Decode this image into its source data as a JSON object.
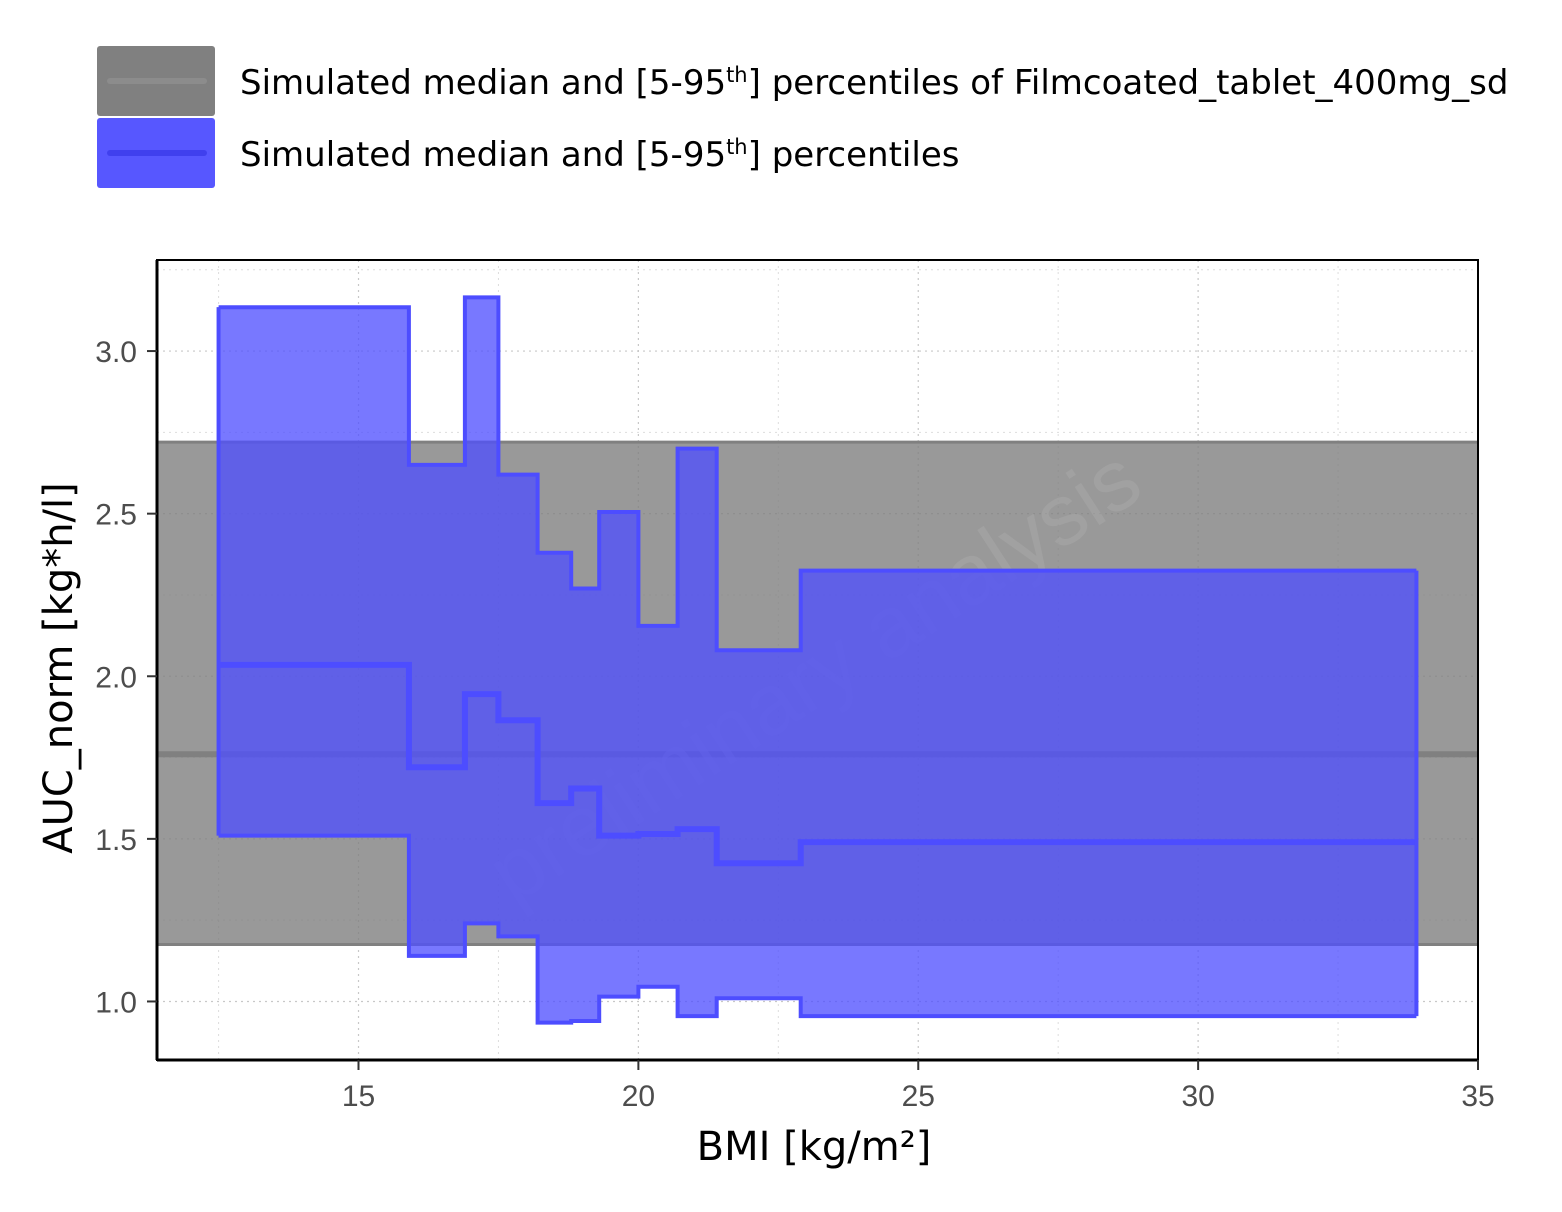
{
  "chart_data": {
    "type": "area",
    "xlabel": "BMI [kg/m²]",
    "ylabel": "AUC_norm [kg*h/l]",
    "xlim": [
      11.4,
      35
    ],
    "ylim": [
      0.82,
      3.28
    ],
    "x_ticks": [
      "15",
      "20",
      "25",
      "30",
      "35"
    ],
    "y_ticks": [
      "1.0",
      "1.5",
      "2.0",
      "2.5",
      "3.0"
    ],
    "x_tick_values": [
      15,
      20,
      25,
      30,
      35
    ],
    "y_tick_values": [
      1.0,
      1.5,
      2.0,
      2.5,
      3.0
    ],
    "grid": true,
    "legend_position": "top",
    "legend": [
      {
        "id": "reference",
        "pre": "Simulated median and [5-95",
        "sup": "th",
        "post": "] percentiles of Filmcoated_tablet_400mg_sd",
        "color": "#808080"
      },
      {
        "id": "population",
        "pre": "Simulated median and [5-95",
        "sup": "th",
        "post": "] percentiles",
        "color": "#4d4dff"
      }
    ],
    "watermark": "preliminary analysis",
    "reference_band": {
      "color": "#808080",
      "x_range": [
        11.4,
        35
      ],
      "median": 1.76,
      "lower": 1.175,
      "upper": 2.72
    },
    "population_series": {
      "color": "#4d4dff",
      "edges": [
        12.5,
        15.9,
        16.9,
        17.5,
        18.2,
        18.8,
        19.3,
        20.0,
        20.7,
        21.4,
        22.9,
        33.9
      ],
      "median": [
        2.035,
        1.72,
        1.945,
        1.865,
        1.61,
        1.655,
        1.51,
        1.515,
        1.53,
        1.425,
        1.49
      ],
      "lower": [
        1.51,
        1.14,
        1.24,
        1.2,
        0.935,
        0.94,
        1.015,
        1.045,
        0.955,
        1.01,
        0.955
      ],
      "upper": [
        3.135,
        2.65,
        3.165,
        2.62,
        2.38,
        2.27,
        2.505,
        2.155,
        2.7,
        2.08,
        2.325
      ]
    }
  }
}
